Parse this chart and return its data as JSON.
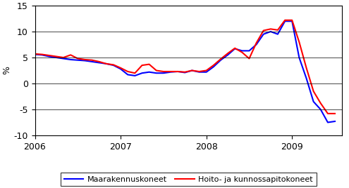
{
  "title": "",
  "ylabel": "%",
  "ylim": [
    -10,
    15
  ],
  "yticks": [
    -10,
    -5,
    0,
    5,
    10,
    15
  ],
  "xlim": [
    2006.0,
    2009.583
  ],
  "bg_color": "#ffffff",
  "grid_color": "#000000",
  "line1_color": "#0000ff",
  "line2_color": "#ff0000",
  "line1_label": "Maarakennuskoneet",
  "line2_label": "Hoito- ja kunnossapitokoneet",
  "xtick_labels": [
    "2006",
    "2007",
    "2008",
    "2009"
  ],
  "xtick_positions": [
    2006.0,
    2007.0,
    2008.0,
    2009.0
  ],
  "maa_x": [
    2006.0,
    2006.083,
    2006.167,
    2006.25,
    2006.333,
    2006.417,
    2006.5,
    2006.583,
    2006.667,
    2006.75,
    2006.833,
    2006.917,
    2007.0,
    2007.083,
    2007.167,
    2007.25,
    2007.333,
    2007.417,
    2007.5,
    2007.583,
    2007.667,
    2007.75,
    2007.833,
    2007.917,
    2008.0,
    2008.083,
    2008.167,
    2008.25,
    2008.333,
    2008.417,
    2008.5,
    2008.583,
    2008.667,
    2008.75,
    2008.833,
    2008.917,
    2009.0,
    2009.083,
    2009.167,
    2009.25,
    2009.333,
    2009.417,
    2009.5
  ],
  "maa_y": [
    5.6,
    5.5,
    5.2,
    5.0,
    4.8,
    4.6,
    4.5,
    4.4,
    4.2,
    4.0,
    3.8,
    3.5,
    2.8,
    1.7,
    1.5,
    2.0,
    2.2,
    2.0,
    2.0,
    2.2,
    2.3,
    2.1,
    2.5,
    2.2,
    2.2,
    3.2,
    4.5,
    5.5,
    6.7,
    6.3,
    6.3,
    7.5,
    9.5,
    10.0,
    9.5,
    12.0,
    12.0,
    5.0,
    1.0,
    -3.5,
    -5.0,
    -7.5,
    -7.3
  ],
  "hoito_x": [
    2006.0,
    2006.083,
    2006.167,
    2006.25,
    2006.333,
    2006.417,
    2006.5,
    2006.583,
    2006.667,
    2006.75,
    2006.833,
    2006.917,
    2007.0,
    2007.083,
    2007.167,
    2007.25,
    2007.333,
    2007.417,
    2007.5,
    2007.583,
    2007.667,
    2007.75,
    2007.833,
    2007.917,
    2008.0,
    2008.083,
    2008.167,
    2008.25,
    2008.333,
    2008.417,
    2008.5,
    2008.583,
    2008.667,
    2008.75,
    2008.833,
    2008.917,
    2009.0,
    2009.083,
    2009.167,
    2009.25,
    2009.333,
    2009.417,
    2009.5
  ],
  "hoito_y": [
    5.7,
    5.6,
    5.4,
    5.2,
    5.0,
    5.5,
    4.8,
    4.6,
    4.5,
    4.2,
    3.8,
    3.6,
    3.0,
    2.3,
    2.0,
    3.5,
    3.7,
    2.5,
    2.3,
    2.3,
    2.3,
    2.2,
    2.5,
    2.3,
    2.5,
    3.5,
    4.7,
    5.8,
    6.8,
    6.0,
    4.8,
    7.8,
    10.2,
    10.5,
    10.3,
    12.2,
    12.2,
    8.0,
    3.0,
    -1.5,
    -3.8,
    -5.8,
    -5.8
  ]
}
